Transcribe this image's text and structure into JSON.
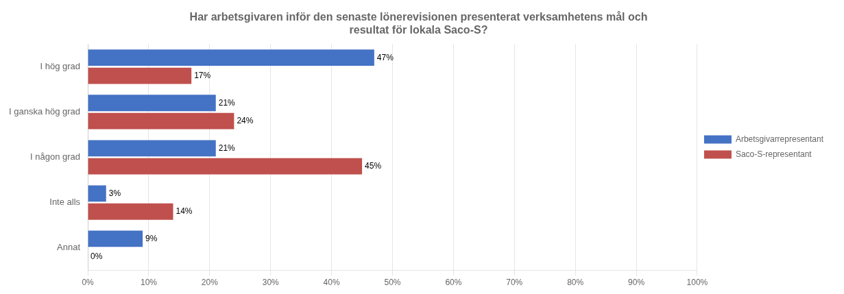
{
  "chart_data": {
    "type": "bar",
    "orientation": "horizontal",
    "title": "Har arbetsgivaren inför den senaste lönerevisionen presenterat verksamhetens mål och\nresultat för lokala Saco-S?",
    "categories": [
      "I hög grad",
      "I ganska hög grad",
      "I någon grad",
      "Inte alls",
      "Annat"
    ],
    "series": [
      {
        "name": "Arbetsgivarrepresentant",
        "color": "#4472C4",
        "values": [
          47,
          21,
          21,
          3,
          9
        ],
        "value_labels": [
          "47%",
          "21%",
          "21%",
          "3%",
          "9%"
        ]
      },
      {
        "name": "Saco-S-representant",
        "color": "#C0504D",
        "values": [
          17,
          24,
          45,
          14,
          0
        ],
        "value_labels": [
          "17%",
          "24%",
          "45%",
          "14%",
          "0%"
        ]
      }
    ],
    "xlim": [
      0,
      100
    ],
    "xticks": [
      {
        "value": 0,
        "label": "0%"
      },
      {
        "value": 10,
        "label": "10%"
      },
      {
        "value": 20,
        "label": "20%"
      },
      {
        "value": 30,
        "label": "30%"
      },
      {
        "value": 40,
        "label": "40%"
      },
      {
        "value": 50,
        "label": "50%"
      },
      {
        "value": 60,
        "label": "60%"
      },
      {
        "value": 70,
        "label": "70%"
      },
      {
        "value": 80,
        "label": "80%"
      },
      {
        "value": 90,
        "label": "90%"
      },
      {
        "value": 100,
        "label": "100%"
      }
    ],
    "grid": true,
    "legend": "right",
    "data_labels": true
  }
}
